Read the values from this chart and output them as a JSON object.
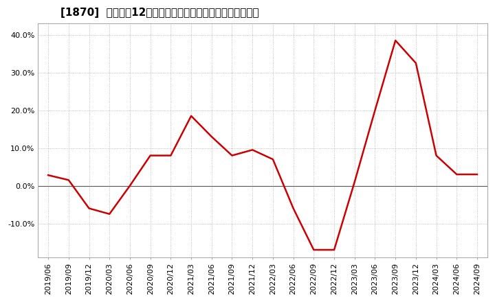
{
  "title": "[1870]  売上高の12か月移動合計の対前年同期増減率の推移",
  "line_color": "#cc0000",
  "background_color": "#ffffff",
  "plot_bg_color": "#ffffff",
  "grid_color": "#aaaaaa",
  "border_color": "#aaaaaa",
  "zero_line_color": "#555555",
  "ylim": [
    -0.19,
    0.43
  ],
  "yticks": [
    -0.1,
    0.0,
    0.1,
    0.2,
    0.3,
    0.4
  ],
  "ytick_labels": [
    "-10.0%",
    "0.0%",
    "10.0%",
    "20.0%",
    "30.0%",
    "40.0%"
  ],
  "dates": [
    "2019/06",
    "2019/09",
    "2019/12",
    "2020/03",
    "2020/06",
    "2020/09",
    "2020/12",
    "2021/03",
    "2021/06",
    "2021/09",
    "2021/12",
    "2022/03",
    "2022/06",
    "2022/09",
    "2022/12",
    "2023/03",
    "2023/06",
    "2023/09",
    "2023/12",
    "2024/03",
    "2024/06",
    "2024/09"
  ],
  "values": [
    0.028,
    0.015,
    -0.06,
    -0.075,
    0.0,
    0.08,
    0.08,
    0.185,
    0.13,
    0.08,
    0.095,
    0.07,
    -0.06,
    -0.17,
    -0.17,
    0.01,
    0.2,
    0.385,
    0.325,
    0.08,
    0.03,
    0.03
  ],
  "title_fontsize": 11,
  "tick_fontsize": 8
}
